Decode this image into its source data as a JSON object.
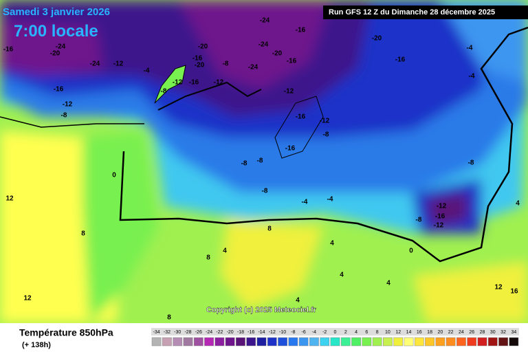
{
  "header": {
    "date": "Samedi 3 janvier 2026",
    "time": "7:00 locale",
    "run": "Run GFS 12 Z du Dimanche 28 décembre 2025"
  },
  "copyright": "Copyright (c) 2025 Meteociel.fr",
  "legend": {
    "title": "Température 850hPa",
    "subtitle": "(+ 138h)",
    "scale": [
      -34,
      -32,
      -30,
      -28,
      -26,
      -24,
      -22,
      -20,
      -18,
      -16,
      -14,
      -12,
      -10,
      -8,
      -6,
      -4,
      -2,
      0,
      2,
      4,
      6,
      8,
      10,
      12,
      14,
      16,
      18,
      20,
      22,
      24,
      26,
      28,
      30,
      32,
      34
    ],
    "colors": [
      "#b4b4b4",
      "#c8a0b4",
      "#b48cb4",
      "#a078a0",
      "#a050a0",
      "#b428b4",
      "#8c1ea0",
      "#6e148c",
      "#5a1478",
      "#3c148c",
      "#1e1ea0",
      "#1e32c8",
      "#1e50dc",
      "#2878f0",
      "#3c96f0",
      "#50b4f0",
      "#3cd2f0",
      "#28e6c8",
      "#3cf096",
      "#50f064",
      "#78f050",
      "#a0f050",
      "#c8f050",
      "#f0f03c",
      "#ffff78",
      "#ffe63c",
      "#ffc828",
      "#ffa01e",
      "#ff8c1e",
      "#ff641e",
      "#f03c1e",
      "#d21e1e",
      "#a01414",
      "#641414",
      "#140a0a"
    ]
  },
  "labels": [
    "-24",
    "-12",
    "-16",
    "-12",
    "-8",
    "-24",
    "-20",
    "-16",
    "-4",
    "-8",
    "-12",
    "-16",
    "-20",
    "-16",
    "-20",
    "-12",
    "-8",
    "-24",
    "-24",
    "-20",
    "-16",
    "-24",
    "-16",
    "-12",
    "-16",
    "-12",
    "-8",
    "-16",
    "-8",
    "-8",
    "-8",
    "-4",
    "-4",
    "-20",
    "-16",
    "-4",
    "-4",
    "-8",
    "-12",
    "-16",
    "-12",
    "-8",
    "4",
    "4",
    "8",
    "8",
    "4",
    "12",
    "12",
    "8",
    "12",
    "16",
    "4",
    "0",
    "0",
    "4",
    "4",
    "8"
  ]
}
